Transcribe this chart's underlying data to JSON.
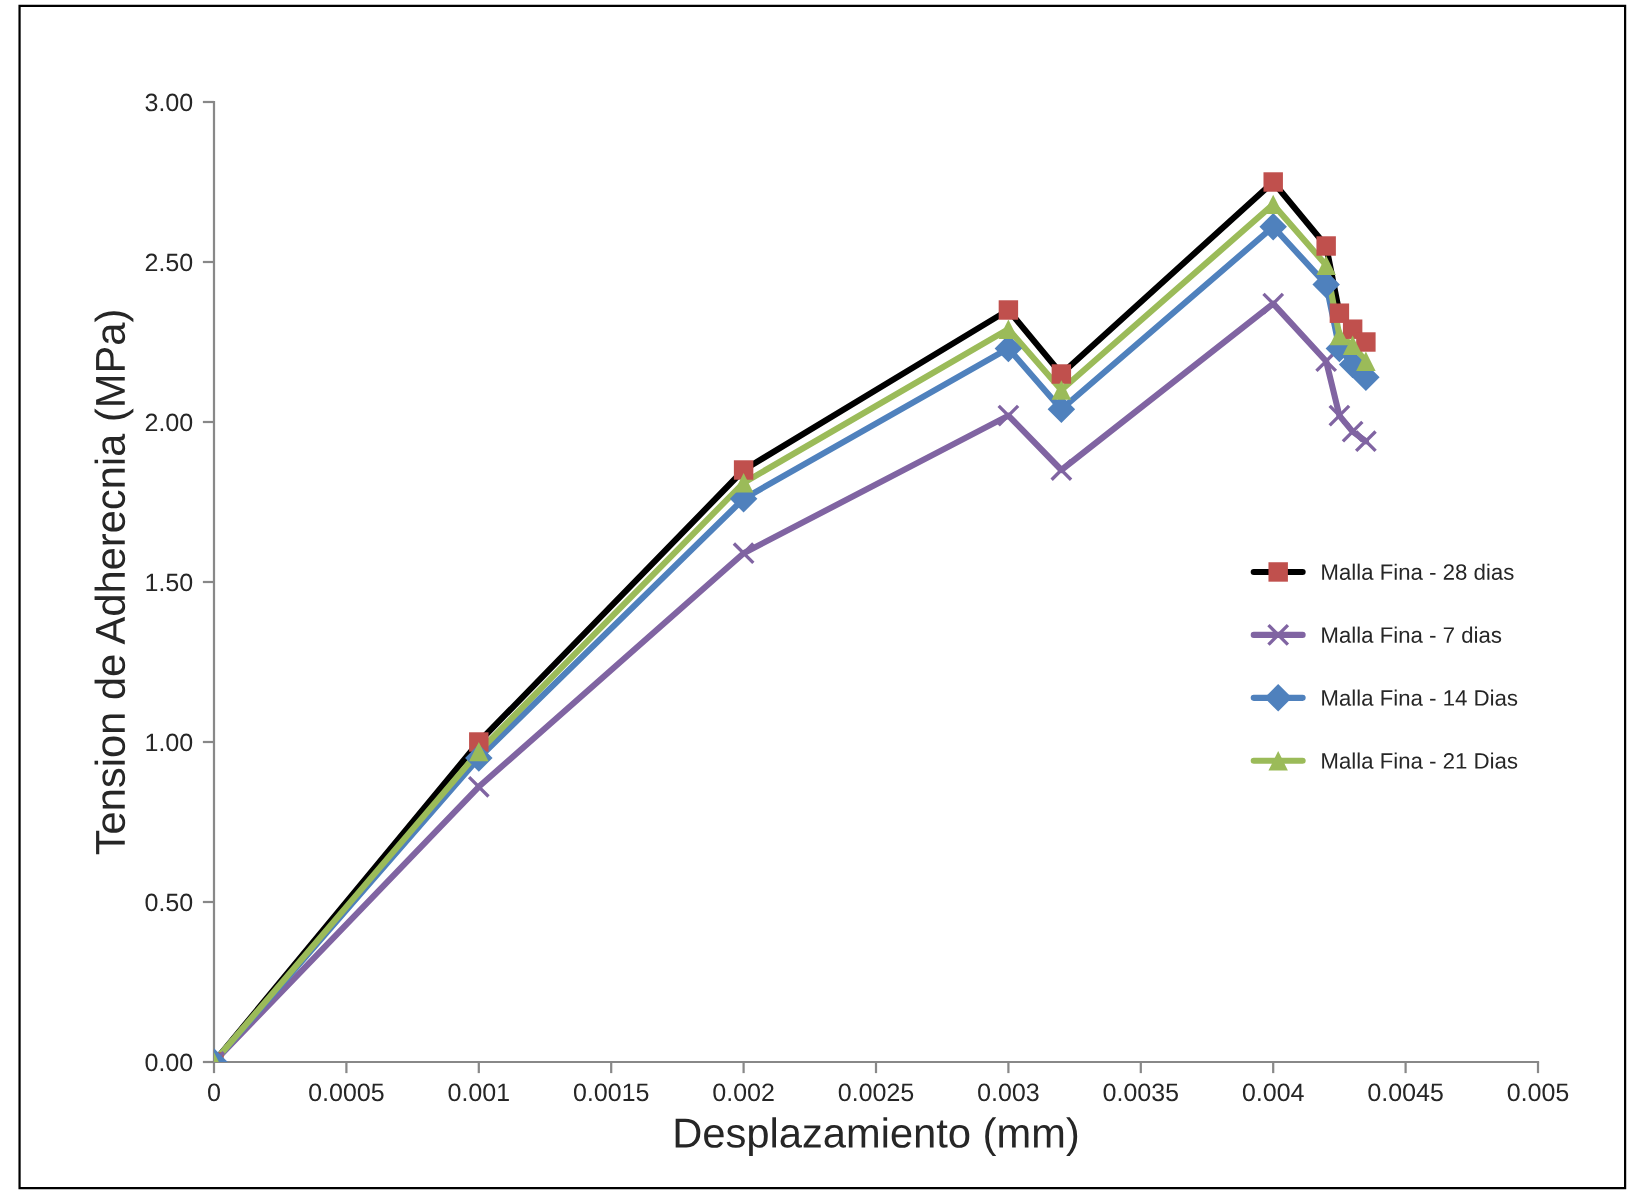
{
  "chart_data": {
    "type": "line",
    "xlabel": "Desplazamiento (mm)",
    "ylabel": "Tension de Adherecnia (MPa)",
    "x": [
      0,
      0.001,
      0.002,
      0.003,
      0.0032,
      0.004,
      0.0042,
      0.00425,
      0.0043,
      0.00435
    ],
    "series": [
      {
        "name": "Malla Fina - 28 dias",
        "color": "#000000",
        "colors": [
          "#c0504d",
          "#c0504d",
          "#c0504d",
          "#c0504d",
          "#c0504d",
          "#c0504d",
          "#c0504d",
          "#c0504d",
          "#c0504d",
          "#c0504d"
        ],
        "marker": "square",
        "values": [
          0,
          1.0,
          1.85,
          2.35,
          2.15,
          2.75,
          2.55,
          2.34,
          2.29,
          2.25
        ]
      },
      {
        "name": "Malla Fina - 7 dias",
        "color": "#8064a2",
        "marker": "cross",
        "values": [
          0,
          0.86,
          1.59,
          2.02,
          1.85,
          2.37,
          2.19,
          2.02,
          1.97,
          1.94
        ]
      },
      {
        "name": "Malla Fina - 14 Dias",
        "color": "#4f81bd",
        "marker": "diamond",
        "values": [
          0,
          0.95,
          1.76,
          2.23,
          2.04,
          2.61,
          2.43,
          2.23,
          2.18,
          2.14
        ]
      },
      {
        "name": "Malla Fina - 21 Dias",
        "color": "#9bbb59",
        "marker": "triangle",
        "values": [
          0,
          0.97,
          1.81,
          2.29,
          2.1,
          2.68,
          2.49,
          2.27,
          2.24,
          2.19
        ]
      }
    ],
    "xlim": [
      0,
      0.005
    ],
    "xticks": [
      0,
      0.0005,
      0.001,
      0.0015,
      0.002,
      0.0025,
      0.003,
      0.0035,
      0.004,
      0.0045,
      0.005
    ],
    "ylim": [
      0,
      3
    ],
    "yticks": [
      {
        "value": 0,
        "label": "0.00"
      },
      {
        "value": 0.5,
        "label": "0.50"
      },
      {
        "value": 1,
        "label": "1.00"
      },
      {
        "value": 1.5,
        "label": "1.50"
      },
      {
        "value": 2,
        "label": "2.00"
      },
      {
        "value": 2.5,
        "label": "2.50"
      },
      {
        "value": 3,
        "label": "3.00"
      }
    ],
    "grid": false,
    "legend": "right"
  }
}
